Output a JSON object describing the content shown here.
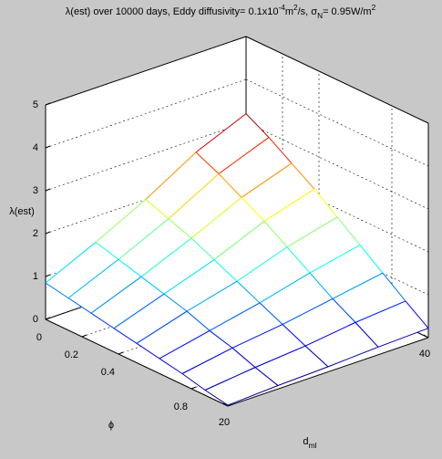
{
  "chart_data": {
    "type": "mesh3d",
    "title": [
      {
        "text": "λ(est) over 10000 days, Eddy diffusivity= 0.1x10"
      },
      {
        "text": "-4",
        "script": "super"
      },
      {
        "text": "m"
      },
      {
        "text": "2",
        "script": "super"
      },
      {
        "text": "/s, σ"
      },
      {
        "text": "N",
        "script": "sub"
      },
      {
        "text": "= 0.95W/m"
      },
      {
        "text": "2",
        "script": "super"
      }
    ],
    "zlabel": [
      {
        "text": "λ(est)"
      }
    ],
    "xlabel": [
      {
        "text": "ϕ"
      }
    ],
    "ylabel": [
      {
        "text": "d"
      },
      {
        "text": "ml",
        "script": "sub"
      }
    ],
    "x": [
      0,
      0.125,
      0.25,
      0.375,
      0.5,
      0.625,
      0.75,
      0.875,
      1
    ],
    "y": [
      20,
      25,
      30,
      35,
      40
    ],
    "values": [
      [
        0.85,
        1.4,
        2.0,
        2.7,
        3.2
      ],
      [
        0.75,
        1.25,
        1.8,
        2.45,
        2.9
      ],
      [
        0.65,
        1.1,
        1.6,
        2.15,
        2.55
      ],
      [
        0.55,
        0.95,
        1.35,
        1.85,
        2.2
      ],
      [
        0.45,
        0.8,
        1.1,
        1.5,
        1.8
      ],
      [
        0.35,
        0.6,
        0.85,
        1.15,
        1.4
      ],
      [
        0.25,
        0.45,
        0.6,
        0.8,
        1.0
      ],
      [
        0.12,
        0.25,
        0.35,
        0.5,
        0.6
      ],
      [
        0.02,
        0.08,
        0.12,
        0.18,
        0.22
      ]
    ],
    "xlim": [
      0,
      1
    ],
    "ylim": [
      20,
      40
    ],
    "zlim": [
      0,
      5
    ],
    "xticks": [
      0,
      0.2,
      0.4,
      0.8
    ],
    "yticks": [
      20,
      40
    ],
    "zticks": [
      0,
      1,
      2,
      3,
      4,
      5
    ],
    "grid": true,
    "colormap": "jet"
  }
}
